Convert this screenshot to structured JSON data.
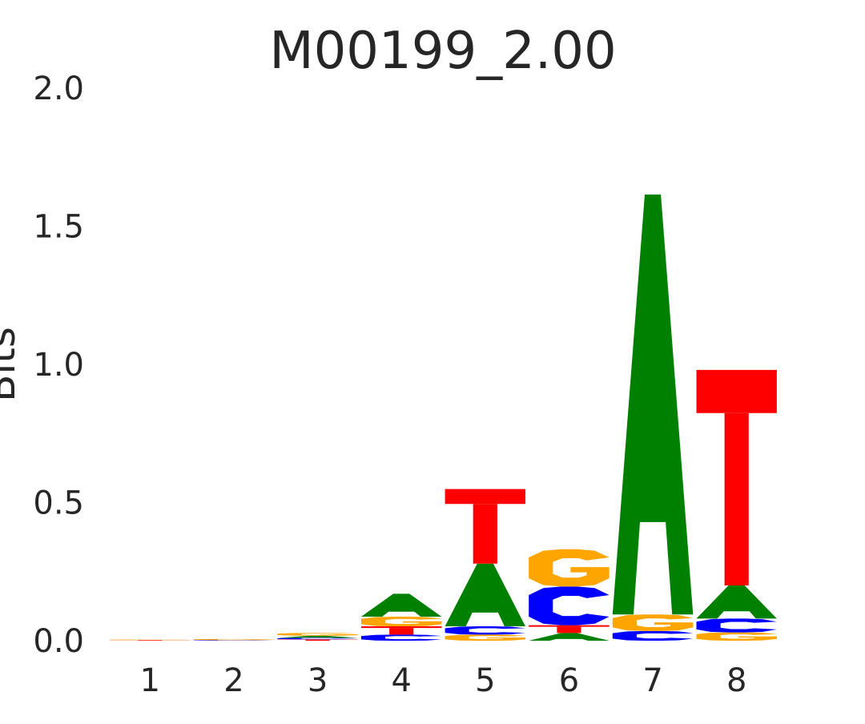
{
  "chart_data": {
    "type": "sequence-logo",
    "title": "M00199_2.00",
    "xlabel": "",
    "ylabel": "Bits",
    "ylim": [
      0,
      2.0
    ],
    "yticks": [
      "0.0",
      "0.5",
      "1.0",
      "1.5",
      "2.0"
    ],
    "positions": [
      "1",
      "2",
      "3",
      "4",
      "5",
      "6",
      "7",
      "8"
    ],
    "grid": false,
    "colors": {
      "A": "#008000",
      "C": "#0000ff",
      "G": "#ffa500",
      "T": "#ff0000"
    },
    "columns": [
      {
        "position": "1",
        "stack": [
          {
            "base": "T",
            "bits": 0.002
          },
          {
            "base": "G",
            "bits": 0.002
          }
        ]
      },
      {
        "position": "2",
        "stack": [
          {
            "base": "C",
            "bits": 0.002
          },
          {
            "base": "G",
            "bits": 0.004
          }
        ]
      },
      {
        "position": "3",
        "stack": [
          {
            "base": "T",
            "bits": 0.005
          },
          {
            "base": "C",
            "bits": 0.005
          },
          {
            "base": "A",
            "bits": 0.008
          },
          {
            "base": "G",
            "bits": 0.01
          }
        ]
      },
      {
        "position": "4",
        "stack": [
          {
            "base": "C",
            "bits": 0.022
          },
          {
            "base": "T",
            "bits": 0.03
          },
          {
            "base": "G",
            "bits": 0.035
          },
          {
            "base": "A",
            "bits": 0.083
          }
        ]
      },
      {
        "position": "5",
        "stack": [
          {
            "base": "G",
            "bits": 0.022
          },
          {
            "base": "C",
            "bits": 0.03
          },
          {
            "base": "A",
            "bits": 0.227
          },
          {
            "base": "T",
            "bits": 0.27
          }
        ]
      },
      {
        "position": "6",
        "stack": [
          {
            "base": "A",
            "bits": 0.028
          },
          {
            "base": "T",
            "bits": 0.028
          },
          {
            "base": "C",
            "bits": 0.14
          },
          {
            "base": "G",
            "bits": 0.135
          }
        ]
      },
      {
        "position": "7",
        "stack": [
          {
            "base": "C",
            "bits": 0.035
          },
          {
            "base": "G",
            "bits": 0.06
          },
          {
            "base": "A",
            "bits": 1.52
          }
        ]
      },
      {
        "position": "8",
        "stack": [
          {
            "base": "G",
            "bits": 0.03
          },
          {
            "base": "C",
            "bits": 0.05
          },
          {
            "base": "A",
            "bits": 0.12
          },
          {
            "base": "T",
            "bits": 0.78
          }
        ]
      }
    ]
  }
}
